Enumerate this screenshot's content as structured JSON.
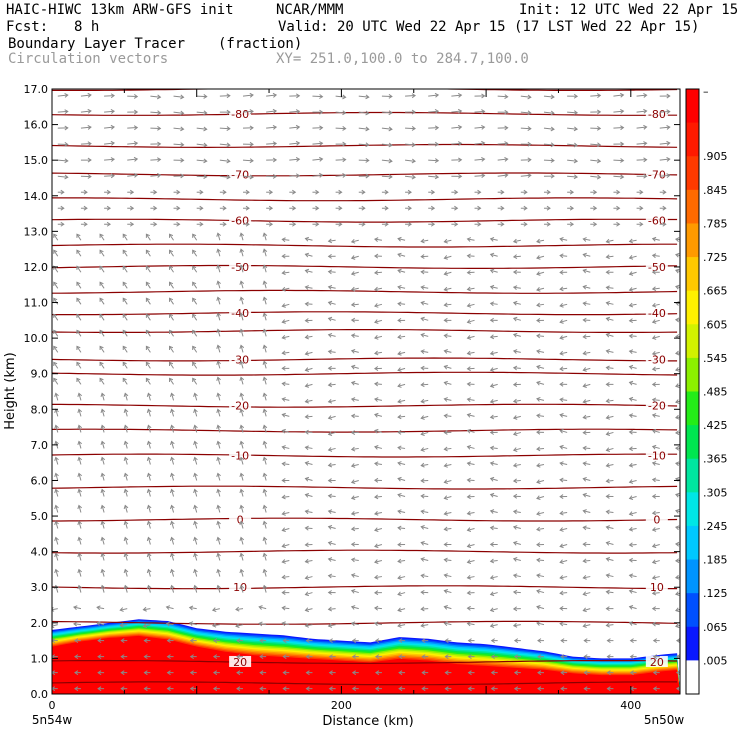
{
  "header": {
    "title_left": "HAIC-HIWC 13km ARW-GFS init",
    "title_center": "NCAR/MMM",
    "init": "Init: 12 UTC Wed 22 Apr 15",
    "fcst_label": "Fcst:",
    "fcst_value": "8 h",
    "valid": "Valid: 20 UTC Wed 22 Apr 15 (17 LST Wed 22 Apr 15)",
    "field_name": "Boundary Layer Tracer",
    "field_units": "(fraction)",
    "overlay_name": "Circulation vectors",
    "xy_range": "XY= 251.0,100.0 to 284.7,100.0"
  },
  "chart_data": {
    "type": "heatmap",
    "xlabel": "Distance (km)",
    "ylabel": "Height (km)",
    "xlim": [
      0,
      434
    ],
    "ylim": [
      0,
      17
    ],
    "x_ticks": [
      0,
      200,
      400
    ],
    "y_ticks": [
      "0.0",
      "1.0",
      "2.0",
      "3.0",
      "4.0",
      "5.0",
      "6.0",
      "7.0",
      "8.0",
      "9.0",
      "10.0",
      "11.0",
      "12.0",
      "13.0",
      "14.0",
      "15.0",
      "16.0",
      "17.0"
    ],
    "x_endpoint_labels": [
      "5n54w",
      "5n50w"
    ],
    "boundary_layer_top_km": {
      "x": [
        0,
        20,
        40,
        60,
        80,
        100,
        120,
        140,
        160,
        180,
        200,
        220,
        240,
        260,
        280,
        300,
        320,
        340,
        360,
        380,
        400,
        420,
        434
      ],
      "top": [
        1.8,
        1.9,
        2.0,
        2.1,
        2.05,
        1.85,
        1.75,
        1.7,
        1.65,
        1.55,
        1.5,
        1.45,
        1.6,
        1.55,
        1.45,
        1.4,
        1.3,
        1.2,
        1.05,
        1.0,
        1.0,
        1.1,
        1.15
      ],
      "core": [
        1.3,
        1.45,
        1.55,
        1.6,
        1.5,
        1.3,
        1.15,
        1.05,
        1.0,
        0.95,
        0.9,
        0.85,
        0.95,
        0.9,
        0.8,
        0.75,
        0.7,
        0.65,
        0.55,
        0.5,
        0.5,
        0.6,
        0.65
      ]
    },
    "temperature_contours": [
      {
        "label": "-80",
        "height_km": 16.3
      },
      {
        "label": "-70",
        "height_km": 14.6
      },
      {
        "label": "-60",
        "height_km": 13.3
      },
      {
        "label": "-50",
        "height_km": 12.0
      },
      {
        "label": "-40",
        "height_km": 10.7
      },
      {
        "label": "-30",
        "height_km": 9.4
      },
      {
        "label": "-20",
        "height_km": 8.1
      },
      {
        "label": "-10",
        "height_km": 6.7
      },
      {
        "label": "0",
        "height_km": 4.9
      },
      {
        "label": "10",
        "height_km": 3.0
      },
      {
        "label": "20",
        "height_km": 0.9
      }
    ],
    "unlabeled_contour_heights_km": [
      17.0,
      15.4,
      13.9,
      12.6,
      11.3,
      10.2,
      9.0,
      7.4,
      5.8,
      4.0,
      2.0,
      0.3
    ],
    "colorbar": {
      "labels": [
        "–",
        ".905",
        ".845",
        ".785",
        ".725",
        ".665",
        ".605",
        ".545",
        ".485",
        ".425",
        ".365",
        ".305",
        ".245",
        ".185",
        ".125",
        ".065",
        ".005"
      ],
      "colors": [
        "#ffffff",
        "#0a18ff",
        "#0050ff",
        "#0094ff",
        "#00c8ff",
        "#00e6e6",
        "#00e6a0",
        "#00e650",
        "#24ec18",
        "#8cf000",
        "#d2f200",
        "#fff000",
        "#ffc800",
        "#ff9a00",
        "#ff6a00",
        "#ff3a00",
        "#ff1a00",
        "#ff0000"
      ]
    }
  }
}
